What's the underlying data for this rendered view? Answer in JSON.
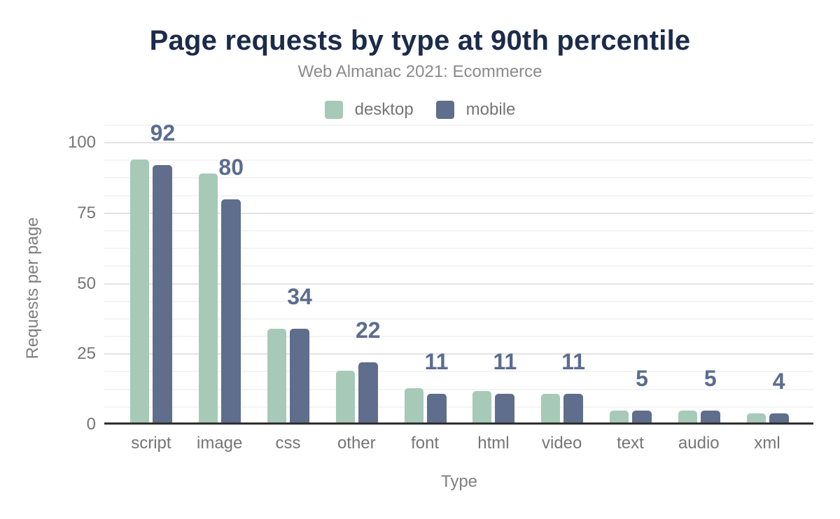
{
  "title": "Page requests by type at 90th percentile",
  "subtitle": "Web Almanac 2021: Ecommerce",
  "legend": [
    {
      "label": "desktop",
      "color": "#a7c9b8"
    },
    {
      "label": "mobile",
      "color": "#5e6e8c"
    }
  ],
  "chart_data": {
    "type": "bar",
    "categories": [
      "script",
      "image",
      "css",
      "other",
      "font",
      "html",
      "video",
      "text",
      "audio",
      "xml"
    ],
    "series": [
      {
        "name": "desktop",
        "color": "#a7c9b8",
        "values": [
          94,
          89,
          34,
          19,
          13,
          12,
          11,
          5,
          5,
          4
        ]
      },
      {
        "name": "mobile",
        "color": "#5e6e8c",
        "values": [
          92,
          80,
          34,
          22,
          11,
          11,
          11,
          5,
          5,
          4
        ]
      }
    ],
    "value_labels": {
      "series": "mobile",
      "values": [
        92,
        80,
        34,
        22,
        11,
        11,
        11,
        5,
        5,
        4
      ]
    },
    "title": "Page requests by type at 90th percentile",
    "subtitle": "Web Almanac 2021: Ecommerce",
    "xlabel": "Type",
    "ylabel": "Requests per page",
    "yticks": [
      0,
      25,
      50,
      75,
      100
    ],
    "ylim": [
      0,
      106.25
    ],
    "grid": "horizontal, major every 25, minor every 6.25",
    "legend_position": "top-center"
  },
  "colors": {
    "background": "#ffffff",
    "title": "#1c2b4a",
    "subtitle": "#8a8a8a",
    "axis_text": "#757575",
    "axis_title": "#7f7f7f",
    "value_label": "#5b6d8f",
    "axis_line": "#2f2f2f",
    "grid_major": "#e4e4e4",
    "grid_minor": "#f4f4f4",
    "desktop_bar": "#a7c9b8",
    "mobile_bar": "#5e6e8c"
  }
}
